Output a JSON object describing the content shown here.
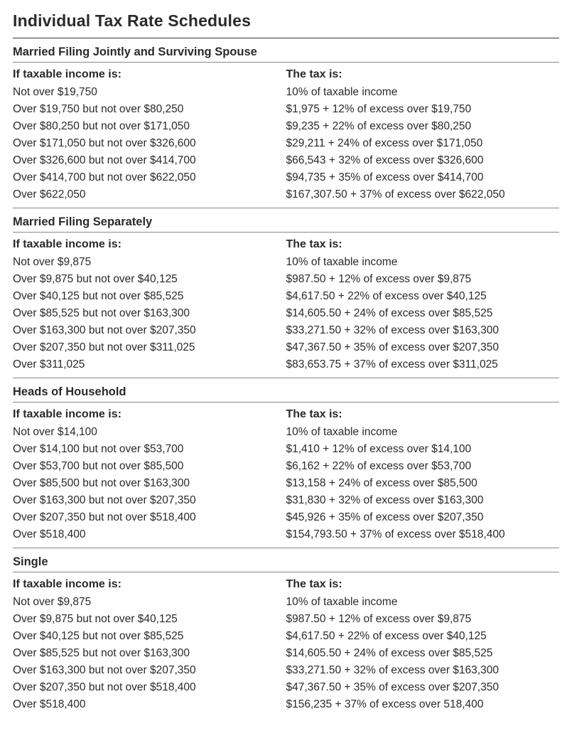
{
  "title": "Individual Tax Rate Schedules",
  "income_header": "If taxable income is:",
  "tax_header": "The tax is:",
  "sections": [
    {
      "name": "Married Filing Jointly and Surviving Spouse",
      "rows": [
        {
          "income": "Not over $19,750",
          "tax": "10% of taxable income"
        },
        {
          "income": "Over $19,750 but not over $80,250",
          "tax": "$1,975 + 12% of excess over $19,750"
        },
        {
          "income": "Over $80,250 but not over $171,050",
          "tax": "$9,235 + 22% of excess over $80,250"
        },
        {
          "income": "Over $171,050 but not over $326,600",
          "tax": "$29,211 + 24% of excess over $171,050"
        },
        {
          "income": "Over $326,600 but not over $414,700",
          "tax": "$66,543 + 32% of excess over $326,600"
        },
        {
          "income": "Over $414,700 but not over $622,050",
          "tax": "$94,735 + 35% of excess over $414,700"
        },
        {
          "income": "Over $622,050",
          "tax": "$167,307.50 + 37% of excess over $622,050"
        }
      ]
    },
    {
      "name": "Married Filing Separately",
      "rows": [
        {
          "income": "Not over $9,875",
          "tax": "10% of taxable income"
        },
        {
          "income": "Over $9,875 but not over $40,125",
          "tax": "$987.50 + 12% of excess over $9,875"
        },
        {
          "income": "Over $40,125 but not over $85,525",
          "tax": "$4,617.50 + 22% of excess over $40,125"
        },
        {
          "income": "Over $85,525 but not over $163,300",
          "tax": "$14,605.50 + 24% of excess over $85,525"
        },
        {
          "income": "Over $163,300 but not over $207,350",
          "tax": "$33,271.50 + 32% of excess over $163,300"
        },
        {
          "income": "Over $207,350 but not over $311,025",
          "tax": "$47,367.50 + 35% of excess over $207,350"
        },
        {
          "income": "Over $311,025",
          "tax": "$83,653.75 + 37% of excess over $311,025"
        }
      ]
    },
    {
      "name": "Heads of Household",
      "rows": [
        {
          "income": "Not over $14,100",
          "tax": "10% of taxable income"
        },
        {
          "income": "Over $14,100 but not over $53,700",
          "tax": "$1,410 + 12% of excess over $14,100"
        },
        {
          "income": "Over $53,700 but not over $85,500",
          "tax": "$6,162 + 22% of excess over $53,700"
        },
        {
          "income": "Over $85,500 but not over $163,300",
          "tax": "$13,158 + 24% of excess over $85,500"
        },
        {
          "income": "Over $163,300 but not over $207,350",
          "tax": "$31,830 + 32% of excess over $163,300"
        },
        {
          "income": "Over $207,350 but not over $518,400",
          "tax": "$45,926 + 35% of excess over $207,350"
        },
        {
          "income": "Over $518,400",
          "tax": "$154,793.50 + 37% of excess over $518,400"
        }
      ]
    },
    {
      "name": "Single",
      "rows": [
        {
          "income": "Not over $9,875",
          "tax": "10% of taxable income"
        },
        {
          "income": "Over $9,875 but not over $40,125",
          "tax": "$987.50 + 12% of excess over $9,875"
        },
        {
          "income": "Over $40,125 but not over $85,525",
          "tax": "$4,617.50 + 22% of excess over $40,125"
        },
        {
          "income": "Over $85,525 but not over $163,300",
          "tax": "$14,605.50 + 24% of excess over $85,525"
        },
        {
          "income": "Over $163,300 but not over $207,350",
          "tax": "$33,271.50 + 32% of excess over $163,300"
        },
        {
          "income": "Over $207,350 but not over $518,400",
          "tax": "$47,367.50 + 35% of excess over $207,350"
        },
        {
          "income": "Over $518,400",
          "tax": "$156,235 + 37% of excess over 518,400"
        }
      ]
    }
  ]
}
